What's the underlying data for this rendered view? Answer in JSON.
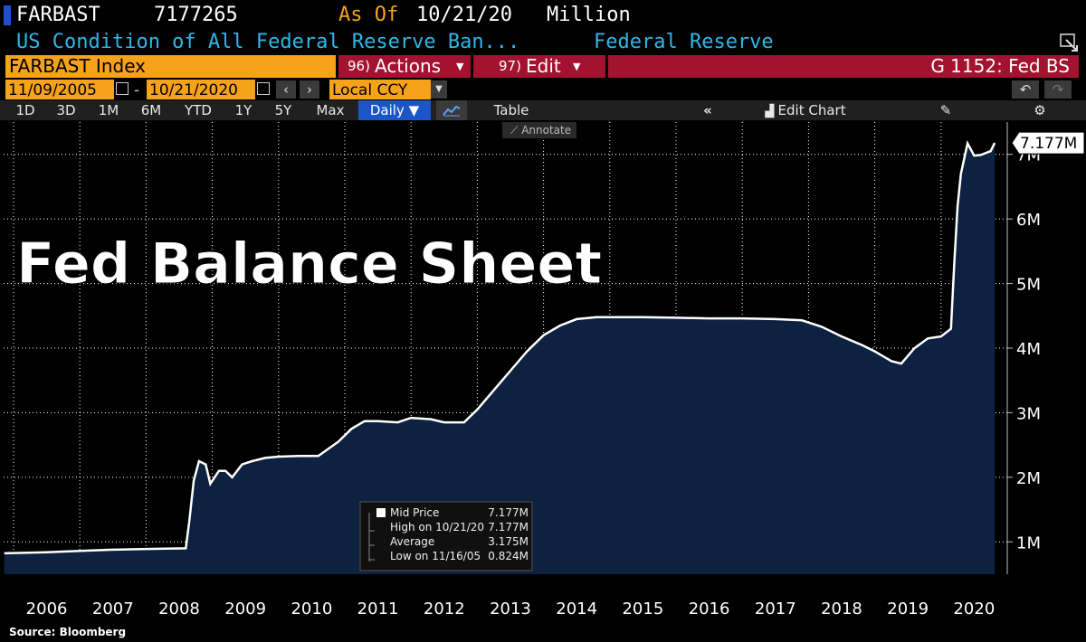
{
  "header": {
    "ticker": "FARBAST",
    "value": "7177265",
    "as_of_label": "As Of",
    "as_of_date": "10/21/20",
    "unit": "Million",
    "description": "US Condition of All Federal Reserve Ban...",
    "source_name": "Federal Reserve"
  },
  "toolbar": {
    "security": "FARBAST Index",
    "actions_num": "96)",
    "actions_label": "Actions",
    "edit_num": "97)",
    "edit_label": "Edit",
    "page_id": "G 1152: Fed BS",
    "start_date": "11/09/2005",
    "end_date": "10/21/2020",
    "date_sep": "-",
    "currency": "Local CCY",
    "ranges": [
      "1D",
      "3D",
      "1M",
      "6M",
      "YTD",
      "1Y",
      "5Y",
      "Max"
    ],
    "frequency": "Daily",
    "table_label": "Table",
    "edit_chart_label": "Edit Chart",
    "annotate_label": "Annotate"
  },
  "chart_data": {
    "type": "area",
    "title": "Fed Balance Sheet",
    "series": [
      {
        "name": "Mid Price",
        "x": [
          2005.86,
          2006.5,
          2007.0,
          2007.5,
          2008.0,
          2008.6,
          2008.65,
          2008.72,
          2008.8,
          2008.9,
          2008.97,
          2009.1,
          2009.2,
          2009.3,
          2009.45,
          2009.6,
          2009.8,
          2010.0,
          2010.3,
          2010.6,
          2010.9,
          2011.1,
          2011.3,
          2011.5,
          2011.8,
          2012.0,
          2012.3,
          2012.5,
          2012.8,
          2013.0,
          2013.25,
          2013.5,
          2013.75,
          2014.0,
          2014.25,
          2014.5,
          2014.8,
          2015.0,
          2015.5,
          2016.0,
          2016.5,
          2017.0,
          2017.5,
          2017.9,
          2018.2,
          2018.5,
          2018.8,
          2019.0,
          2019.25,
          2019.4,
          2019.6,
          2019.8,
          2020.0,
          2020.15,
          2020.2,
          2020.25,
          2020.3,
          2020.4,
          2020.5,
          2020.6,
          2020.75,
          2020.81
        ],
        "values": [
          0.824,
          0.84,
          0.86,
          0.88,
          0.89,
          0.9,
          1.3,
          1.95,
          2.25,
          2.2,
          1.9,
          2.1,
          2.1,
          2.0,
          2.2,
          2.25,
          2.3,
          2.32,
          2.33,
          2.33,
          2.55,
          2.75,
          2.87,
          2.87,
          2.85,
          2.92,
          2.9,
          2.85,
          2.85,
          3.05,
          3.35,
          3.65,
          3.95,
          4.2,
          4.35,
          4.45,
          4.48,
          4.48,
          4.48,
          4.47,
          4.46,
          4.46,
          4.45,
          4.43,
          4.33,
          4.18,
          4.05,
          3.95,
          3.8,
          3.76,
          4.0,
          4.15,
          4.18,
          4.3,
          5.3,
          6.2,
          6.7,
          7.17,
          6.98,
          6.99,
          7.05,
          7.177
        ]
      }
    ],
    "last_value_label": "7.177M",
    "xlim": [
      2005.85,
      2021.0
    ],
    "ylim": [
      0.5,
      7.5
    ],
    "yticks": [
      1,
      2,
      3,
      4,
      5,
      6,
      7
    ],
    "ytick_labels": [
      "1M",
      "2M",
      "3M",
      "4M",
      "5M",
      "6M",
      "7M"
    ],
    "xtick_labels": [
      "2006",
      "2007",
      "2008",
      "2009",
      "2010",
      "2011",
      "2012",
      "2013",
      "2014",
      "2015",
      "2016",
      "2017",
      "2018",
      "2019",
      "2020"
    ],
    "grid": true,
    "fill_color": "#0d2240",
    "line_color": "#ffffff",
    "legend": {
      "position": "bottom-center",
      "rows": [
        {
          "label": "Mid Price",
          "value": "7.177M"
        },
        {
          "label": "High on 10/21/20",
          "value": "7.177M"
        },
        {
          "label": "Average",
          "value": "3.175M"
        },
        {
          "label": "Low on 11/16/05",
          "value": "0.824M"
        }
      ]
    }
  },
  "footer": {
    "source": "Source: Bloomberg"
  },
  "colors": {
    "orange": "#f7a21b",
    "red": "#a3122f",
    "cyan": "#2fb7e8",
    "active_blue": "#1c55c7"
  }
}
